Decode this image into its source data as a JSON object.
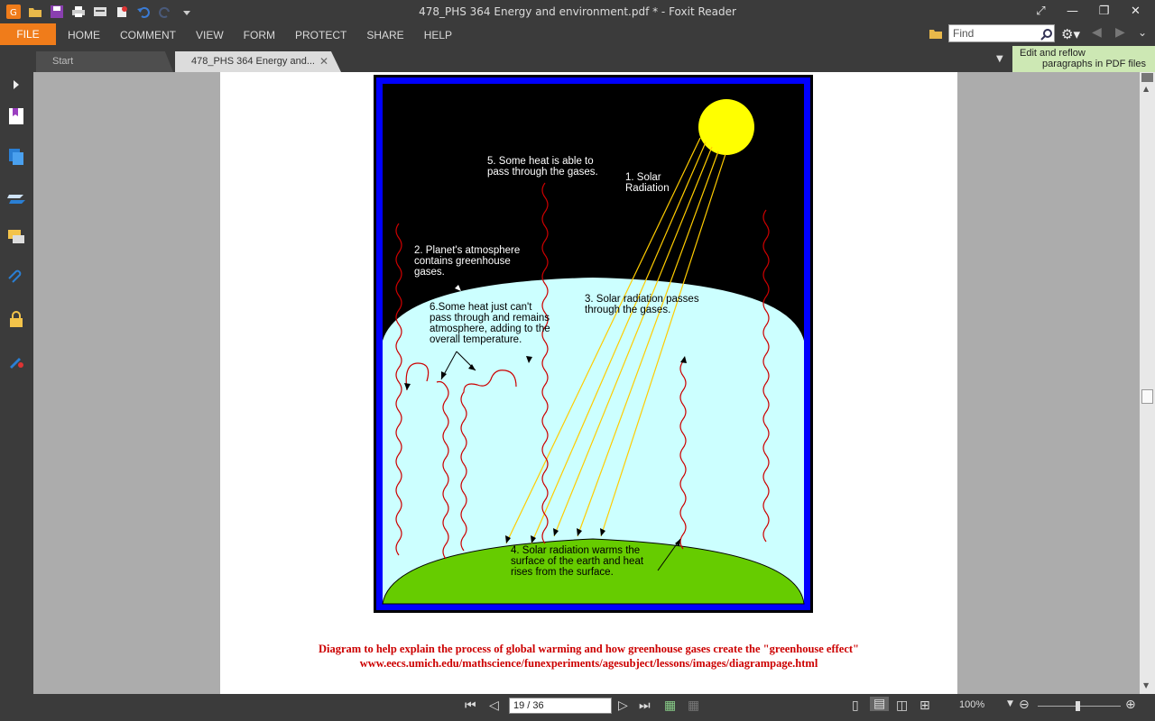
{
  "window": {
    "title": "478_PHS 364 Energy and environment.pdf * - Foxit Reader"
  },
  "menu": {
    "file": "FILE",
    "items": [
      "HOME",
      "COMMENT",
      "VIEW",
      "FORM",
      "PROTECT",
      "SHARE",
      "HELP"
    ]
  },
  "search": {
    "placeholder": "Find"
  },
  "tabs": [
    {
      "label": "Start"
    },
    {
      "label": "478_PHS 364 Energy and..."
    }
  ],
  "tip": {
    "line1": "Edit and reflow",
    "line2": "paragraphs in PDF files"
  },
  "diagram": {
    "label1": [
      "1. Solar",
      "Radiation"
    ],
    "label2": [
      "2. Planet's atmosphere",
      "contains  greenhouse",
      "gases."
    ],
    "label3": [
      "3. Solar radiation passes",
      "through the gases."
    ],
    "label4": [
      "4. Solar radiation warms the",
      "surface of the earth and heat",
      "rises from the surface."
    ],
    "label5": [
      "5. Some heat is able to",
      "pass through the gases."
    ],
    "label6": [
      "6.Some heat just can't",
      "pass through and remains",
      "atmosphere, adding to the",
      "overall temperature."
    ]
  },
  "caption": {
    "line1": "Diagram to help explain the process of global warming and how greenhouse gases create the \"greenhouse effect\"",
    "line2": "www.eecs.umich.edu/mathscience/funexperiments/agesubject/lessons/images/diagrampage.html"
  },
  "status": {
    "page_indicator": "19 / 36",
    "zoom": "100%"
  },
  "colors": {
    "accent": "#f07c1a",
    "caption": "#cc0000",
    "frame": "#0000ff",
    "atmosphere": "#ccffff",
    "earth": "#66cc00",
    "sun": "#ffff00"
  }
}
